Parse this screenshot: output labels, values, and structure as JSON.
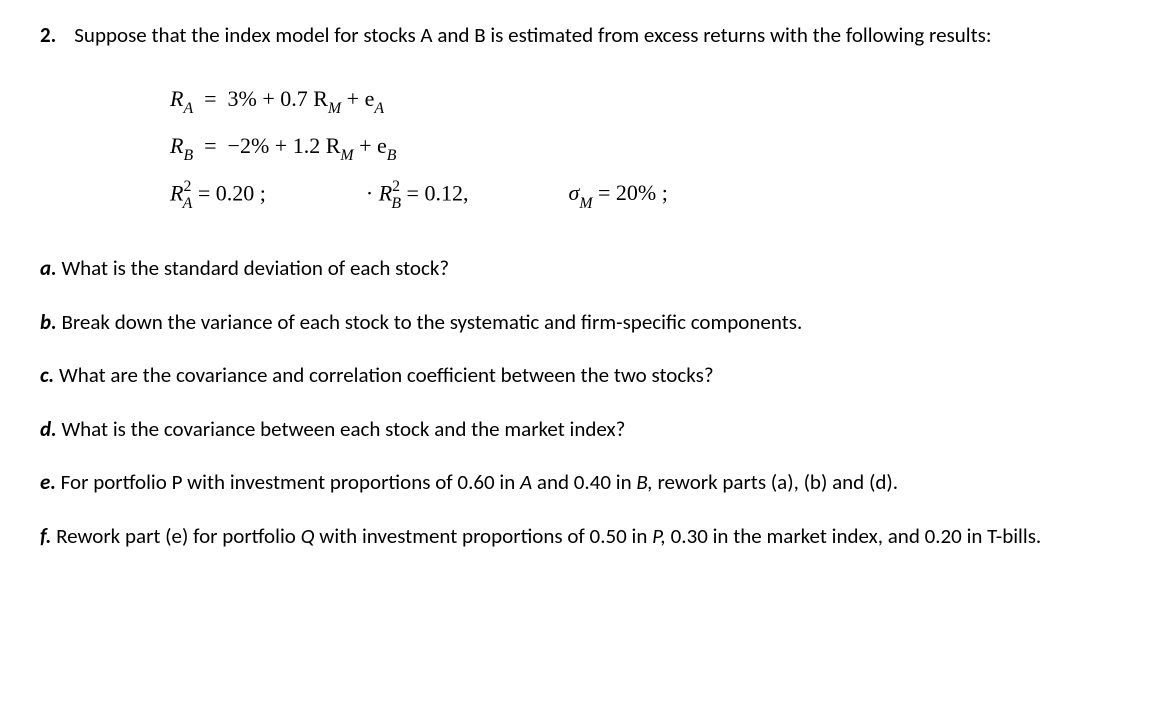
{
  "question": {
    "number": "2.",
    "stem": "Suppose that the index model for stocks A and B is estimated from excess returns with the following results:"
  },
  "formulas": {
    "RA": {
      "lhs_var": "R",
      "lhs_sub": "A",
      "rhs": "3% + 0.7 R",
      "rhs_sub": "M",
      "tail": " + e",
      "tail_sub": "A"
    },
    "RB": {
      "lhs_var": "R",
      "lhs_sub": "B",
      "rhs": "−2% + 1.2 R",
      "rhs_sub": "M",
      "tail": " + e",
      "tail_sub": "B"
    },
    "R2A": {
      "var": "R",
      "sup": "2",
      "sub": "A",
      "eq": " = 0.20 ;"
    },
    "R2B": {
      "prefix": "· ",
      "var": "R",
      "sup": "2",
      "sub": "B",
      "eq": " = 0.12,"
    },
    "sigmaM": {
      "var": "σ",
      "sub": "M",
      "eq": "  =  20% ;"
    }
  },
  "parts": {
    "a": {
      "label": "a.",
      "text": " What is the standard deviation of each stock?"
    },
    "b": {
      "label": "b.",
      "text": " Break down the variance of each stock to the systematic and firm-specific components."
    },
    "c": {
      "label": "c.",
      "text": " What are the covariance and correlation coefficient between the two stocks?"
    },
    "d": {
      "label": "d.",
      "text": " What is the covariance between each stock and the market index?"
    },
    "e": {
      "label": "e.",
      "text_before": " For portfolio P with investment proportions of 0.60 in ",
      "mid1": "A",
      "text_mid": " and 0.40 in ",
      "mid2": "B,",
      "text_after": " rework parts (a), (b) and (d)."
    },
    "f": {
      "label": "f.",
      "text_before": " Rework part (e) for portfolio ",
      "q": "Q",
      "text_mid": " with investment proportions of 0.50 in ",
      "p": "P,",
      "text_after": " 0.30 in the market index, and 0.20 in T-bills."
    }
  }
}
